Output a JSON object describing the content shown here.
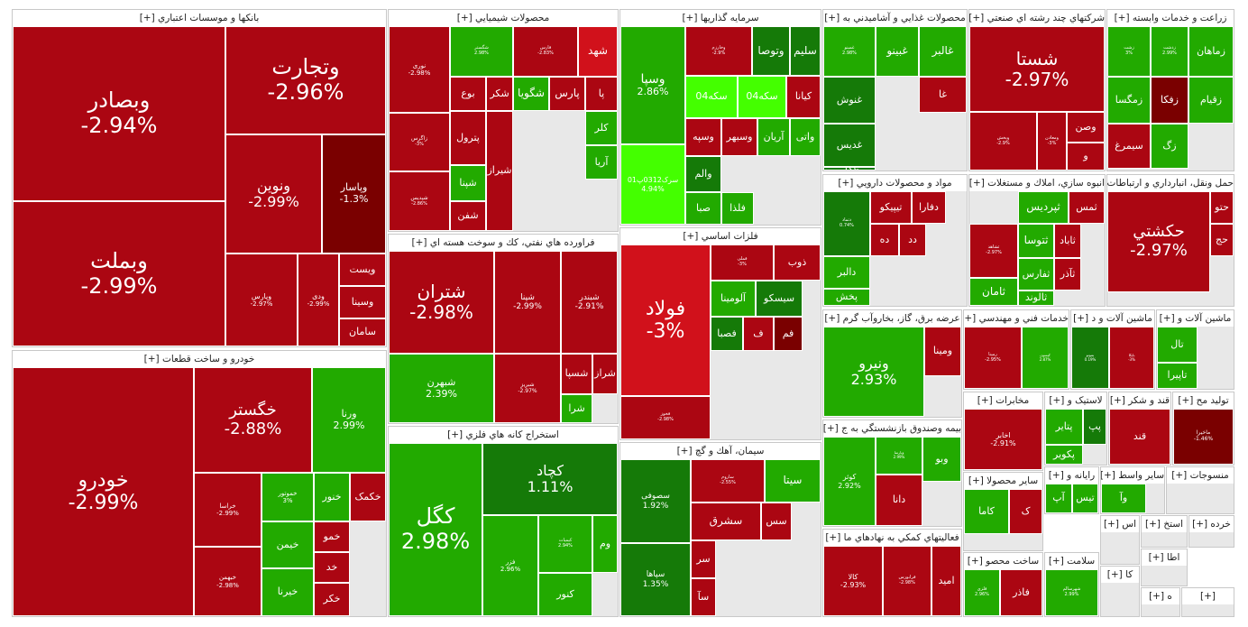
{
  "colors": {
    "neg_dark": "#7a0000",
    "neg": "#ab0612",
    "neg_light": "#d1111b",
    "pos": "#22aa00",
    "pos_dark": "#157a08",
    "pos_light": "#44ff00",
    "neutral": "#e8e8e8"
  },
  "chart_data": {
    "type": "treemap",
    "title": "",
    "sectors": [
      {
        "name": "بانکها و موسسات اعتباري [+]",
        "tiles": [
          {
            "symbol": "وبصادر",
            "change": "-2.94%"
          },
          {
            "symbol": "وتجارت",
            "change": "-2.96%"
          },
          {
            "symbol": "ونوین",
            "change": "-2.99%"
          },
          {
            "symbol": "وپاسار",
            "change": "-1.3%"
          },
          {
            "symbol": "وبملت",
            "change": "-2.99%"
          },
          {
            "symbol": "وپارس",
            "change": "-2.97%"
          },
          {
            "symbol": "ودی",
            "change": "-2.99%"
          },
          {
            "symbol": "ویست",
            "change": ""
          },
          {
            "symbol": "وسینا",
            "change": ""
          },
          {
            "symbol": "سامان",
            "change": ""
          }
        ]
      },
      {
        "name": "خودرو و ساخت قطعات [+]",
        "tiles": [
          {
            "symbol": "خودرو",
            "change": "-2.99%"
          },
          {
            "symbol": "خگستر",
            "change": "-2.88%"
          },
          {
            "symbol": "ورنا",
            "change": "2.99%"
          },
          {
            "symbol": "خراسا",
            "change": "-2.99%"
          },
          {
            "symbol": "خبهمن",
            "change": "-2.98%"
          },
          {
            "symbol": "خموتور",
            "change": "3%"
          },
          {
            "symbol": "خنور",
            "change": ""
          },
          {
            "symbol": "خکمک",
            "change": ""
          },
          {
            "symbol": "خیمن",
            "change": ""
          },
          {
            "symbol": "خیرنا",
            "change": ""
          },
          {
            "symbol": "خمو",
            "change": ""
          },
          {
            "symbol": "خد",
            "change": ""
          },
          {
            "symbol": "خکر",
            "change": ""
          }
        ]
      },
      {
        "name": "محصولات شيميايي [+]",
        "tiles": [
          {
            "symbol": "نوری",
            "change": "-2.98%"
          },
          {
            "symbol": "شگستر",
            "change": "2.98%"
          },
          {
            "symbol": "فارس",
            "change": "-2.83%"
          },
          {
            "symbol": "شهد",
            "change": ""
          },
          {
            "symbol": "شگویا",
            "change": ""
          },
          {
            "symbol": "پارس",
            "change": ""
          },
          {
            "symbol": "شکر",
            "change": ""
          },
          {
            "symbol": "بوع",
            "change": ""
          },
          {
            "symbol": "پا",
            "change": ""
          },
          {
            "symbol": "زاگرس",
            "change": "-3%"
          },
          {
            "symbol": "پترول",
            "change": ""
          },
          {
            "symbol": "شپدیس",
            "change": "-2.86%"
          },
          {
            "symbol": "شپنا",
            "change": ""
          },
          {
            "symbol": "شفن",
            "change": ""
          },
          {
            "symbol": "کلر",
            "change": ""
          },
          {
            "symbol": "آریا",
            "change": ""
          },
          {
            "symbol": "شیراز",
            "change": ""
          }
        ]
      },
      {
        "name": "فراورده هاي نفتي، کك و سوخت هسته اي [+]",
        "tiles": [
          {
            "symbol": "شتران",
            "change": "-2.98%"
          },
          {
            "symbol": "شپنا",
            "change": "-2.99%"
          },
          {
            "symbol": "شبندر",
            "change": "-2.91%"
          },
          {
            "symbol": "شبهرن",
            "change": "2.39%"
          },
          {
            "symbol": "شبریز",
            "change": "-2.97%"
          },
          {
            "symbol": "شسپا",
            "change": ""
          },
          {
            "symbol": "شراز",
            "change": ""
          },
          {
            "symbol": "شرا",
            "change": ""
          }
        ]
      },
      {
        "name": "استخراج کانه هاي فلزي [+]",
        "tiles": [
          {
            "symbol": "کگل",
            "change": "2.98%"
          },
          {
            "symbol": "کچاد",
            "change": "1.11%"
          },
          {
            "symbol": "فزر",
            "change": "2.96%"
          },
          {
            "symbol": "کیمیات",
            "change": "2.94%"
          },
          {
            "symbol": "کنور",
            "change": ""
          },
          {
            "symbol": "وم",
            "change": ""
          }
        ]
      },
      {
        "name": "سرمايه گذاريها [+]",
        "tiles": [
          {
            "symbol": "وسپا",
            "change": "2.86%"
          },
          {
            "symbol": "وخارزم",
            "change": "-2.9%"
          },
          {
            "symbol": "وتوصا",
            "change": ""
          },
          {
            "symbol": "سلیم",
            "change": ""
          },
          {
            "symbol": "سکه04",
            "change": ""
          },
          {
            "symbol": "سکه04",
            "change": ""
          },
          {
            "symbol": "کیانا",
            "change": ""
          },
          {
            "symbol": "وسپه",
            "change": ""
          },
          {
            "symbol": "وسبهر",
            "change": ""
          },
          {
            "symbol": "آریان",
            "change": ""
          },
          {
            "symbol": "واتی",
            "change": ""
          },
          {
            "symbol": "سرک0312پ01",
            "change": "4.94%"
          },
          {
            "symbol": "والم",
            "change": ""
          },
          {
            "symbol": "صبا",
            "change": ""
          },
          {
            "symbol": "فلذا",
            "change": ""
          }
        ]
      },
      {
        "name": "فلزات اساسي [+]",
        "tiles": [
          {
            "symbol": "فولاد",
            "change": "-3%"
          },
          {
            "symbol": "فملی",
            "change": "-3%"
          },
          {
            "symbol": "ذوب",
            "change": ""
          },
          {
            "symbol": "آلومینا",
            "change": ""
          },
          {
            "symbol": "سیسکو",
            "change": ""
          },
          {
            "symbol": "فصبا",
            "change": ""
          },
          {
            "symbol": "فخوز",
            "change": "-2.98%"
          },
          {
            "symbol": "فم",
            "change": ""
          },
          {
            "symbol": "ف",
            "change": ""
          }
        ]
      },
      {
        "name": "سيمان، آهك و گچ [+]",
        "tiles": [
          {
            "symbol": "سصوفی",
            "change": "1.92%"
          },
          {
            "symbol": "سپاها",
            "change": "1.35%"
          },
          {
            "symbol": "ساروم",
            "change": "-2.55%"
          },
          {
            "symbol": "سیتا",
            "change": ""
          },
          {
            "symbol": "سشرق",
            "change": ""
          },
          {
            "symbol": "سس",
            "change": ""
          },
          {
            "symbol": "سر",
            "change": ""
          },
          {
            "symbol": "سآ",
            "change": ""
          }
        ]
      },
      {
        "name": "محصولات غذايي و آشاميدني به [+]",
        "tiles": [
          {
            "symbol": "غمینو",
            "change": "2.98%"
          },
          {
            "symbol": "غبینو",
            "change": ""
          },
          {
            "symbol": "غالبر",
            "change": ""
          },
          {
            "symbol": "غنوش",
            "change": ""
          },
          {
            "symbol": "غدیس",
            "change": ""
          },
          {
            "symbol": "غگل",
            "change": ""
          },
          {
            "symbol": "غا",
            "change": ""
          }
        ]
      },
      {
        "name": "شركتهاي چند رشته اي صنعتي [+]",
        "tiles": [
          {
            "symbol": "شستا",
            "change": "-2.97%"
          },
          {
            "symbol": "وپخش",
            "change": "-2.9%"
          },
          {
            "symbol": "وصن",
            "change": ""
          },
          {
            "symbol": "ومعادن",
            "change": "-3%"
          },
          {
            "symbol": "و",
            "change": ""
          }
        ]
      },
      {
        "name": "زراعت و خدمات وابسته [+]",
        "tiles": [
          {
            "symbol": "زشت",
            "change": "3%"
          },
          {
            "symbol": "زماهان",
            "change": ""
          },
          {
            "symbol": "زقیام",
            "change": ""
          },
          {
            "symbol": "زمگسا",
            "change": ""
          },
          {
            "symbol": "زفکا",
            "change": ""
          },
          {
            "symbol": "سیمرغ",
            "change": ""
          },
          {
            "symbol": "زگ",
            "change": ""
          },
          {
            "symbol": "زدشت",
            "change": "2.99%"
          }
        ]
      },
      {
        "name": "مواد و محصولات دارويي [+]",
        "tiles": [
          {
            "symbol": "دتماد",
            "change": "0.74%"
          },
          {
            "symbol": "تیپیکو",
            "change": ""
          },
          {
            "symbol": "دفارا",
            "change": ""
          },
          {
            "symbol": "دالبر",
            "change": ""
          },
          {
            "symbol": "پخش",
            "change": ""
          },
          {
            "symbol": "ده",
            "change": ""
          },
          {
            "symbol": "دد",
            "change": ""
          }
        ]
      },
      {
        "name": "انبوه سازي، املاك و مستغلات [+]",
        "tiles": [
          {
            "symbol": "ثپردیس",
            "change": ""
          },
          {
            "symbol": "ثامان",
            "change": ""
          },
          {
            "symbol": "ثشاهد",
            "change": "-2.97%"
          },
          {
            "symbol": "ثتوسا",
            "change": ""
          },
          {
            "symbol": "ثاباد",
            "change": ""
          },
          {
            "symbol": "ثفارس",
            "change": ""
          },
          {
            "symbol": "ثالوند",
            "change": ""
          },
          {
            "symbol": "ثآذر",
            "change": ""
          },
          {
            "symbol": "ثمس",
            "change": ""
          }
        ]
      },
      {
        "name": "حمل ونقل، انبارداري و ارتباطات [+]",
        "tiles": [
          {
            "symbol": "حکشتي",
            "change": "-2.97%"
          },
          {
            "symbol": "حتو",
            "change": ""
          },
          {
            "symbol": "حج",
            "change": ""
          }
        ]
      },
      {
        "name": "عرضه برق، گاز، بخاروآب گرم [+]",
        "tiles": [
          {
            "symbol": "ونیرو",
            "change": "2.93%"
          },
          {
            "symbol": "ومینا",
            "change": ""
          }
        ]
      },
      {
        "name": "خدمات فني و مهندسي [+]",
        "tiles": [
          {
            "symbol": "رمپنا",
            "change": "-2.95%"
          },
          {
            "symbol": "کیسون",
            "change": "2.87%"
          }
        ]
      },
      {
        "name": "ماشين آلات و د [+]",
        "tiles": [
          {
            "symbol": "بموتو",
            "change": "0.19%"
          },
          {
            "symbol": "بایکا",
            "change": "-3%"
          }
        ]
      },
      {
        "name": "ماشين آلات و [+]",
        "tiles": [
          {
            "symbol": "تال",
            "change": ""
          },
          {
            "symbol": "تاپیرا",
            "change": ""
          }
        ]
      },
      {
        "name": "بيمه وصندوق بازنشستگي به ج [+]",
        "tiles": [
          {
            "symbol": "کوثر",
            "change": "2.92%"
          },
          {
            "symbol": "وپارسا",
            "change": "2.99%"
          },
          {
            "symbol": "دانا",
            "change": ""
          },
          {
            "symbol": "وبو",
            "change": ""
          }
        ]
      },
      {
        "name": "مخابرات [+]",
        "tiles": [
          {
            "symbol": "اخابر",
            "change": "-2.91%"
          }
        ]
      },
      {
        "name": "لاستيک و [+]",
        "tiles": [
          {
            "symbol": "پتایر",
            "change": ""
          },
          {
            "symbol": "پکویر",
            "change": ""
          },
          {
            "symbol": "پپ",
            "change": ""
          }
        ]
      },
      {
        "name": "قند و شکر [+]",
        "tiles": [
          {
            "symbol": "قند",
            "change": ""
          }
        ]
      },
      {
        "name": "توليد مح [+]",
        "tiles": [
          {
            "symbol": "ماخیرا",
            "change": "-1.46%"
          }
        ]
      },
      {
        "name": "فعاليتهاي کمکي به نهادهاي ما [+]",
        "tiles": [
          {
            "symbol": "کالا",
            "change": "-2.93%"
          },
          {
            "symbol": "فرابورس",
            "change": "-2.98%"
          },
          {
            "symbol": "امید",
            "change": ""
          }
        ]
      },
      {
        "name": "ساير محصولا [+]",
        "tiles": [
          {
            "symbol": "کاما",
            "change": ""
          },
          {
            "symbol": "ک",
            "change": ""
          }
        ]
      },
      {
        "name": "رايانه و [+]",
        "tiles": [
          {
            "symbol": "آپ",
            "change": ""
          },
          {
            "symbol": "تیس",
            "change": ""
          }
        ]
      },
      {
        "name": "ساير واسط [+]",
        "tiles": [
          {
            "symbol": "وآ",
            "change": ""
          }
        ]
      },
      {
        "name": "منسوجات [+]",
        "tiles": []
      },
      {
        "name": "ساخت محصو [+]",
        "tiles": [
          {
            "symbol": "فلزی",
            "change": "2.96%"
          },
          {
            "symbol": "فاذر",
            "change": ""
          }
        ]
      },
      {
        "name": "سلامت [+]",
        "tiles": [
          {
            "symbol": "شهرسالم",
            "change": "2.99%"
          }
        ]
      },
      {
        "name": "اس [+]",
        "tiles": []
      },
      {
        "name": "استخ [+]",
        "tiles": []
      },
      {
        "name": "خرده [+]",
        "tiles": []
      },
      {
        "name": "کا [+]",
        "tiles": []
      },
      {
        "name": "اطا [+]",
        "tiles": []
      },
      {
        "name": "ه [+]",
        "tiles": []
      },
      {
        "name": "[+]",
        "tiles": []
      }
    ]
  }
}
